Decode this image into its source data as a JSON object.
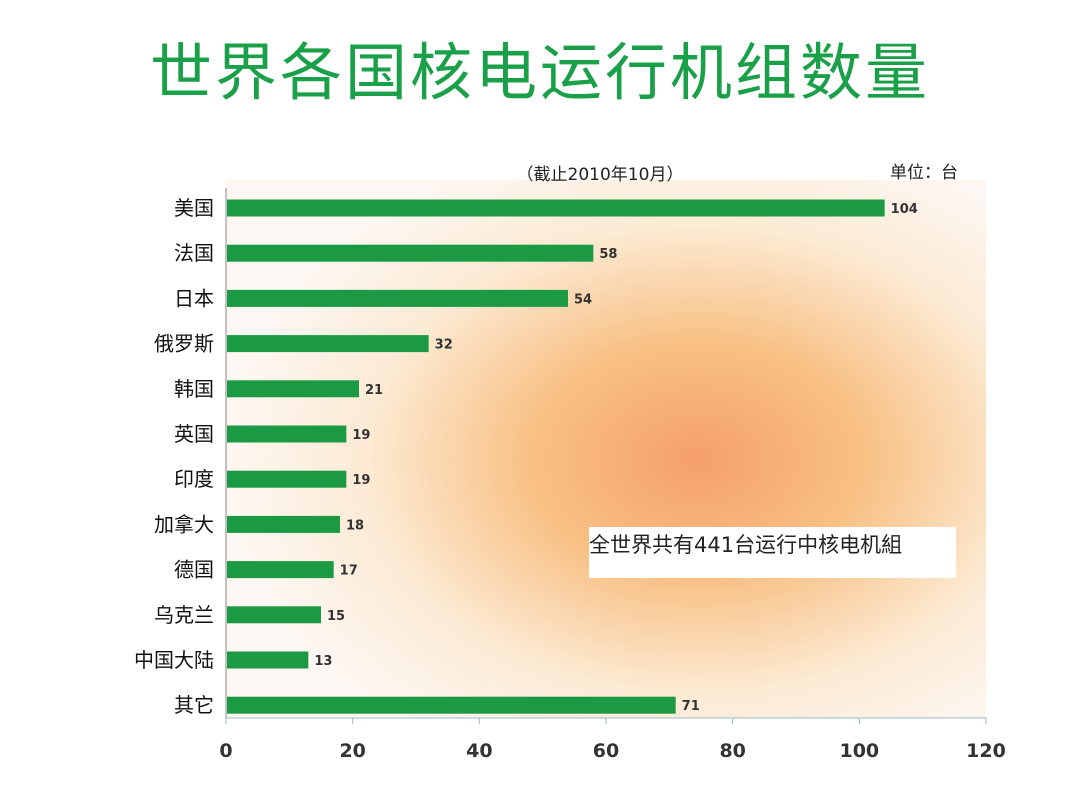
{
  "slide": {
    "title": "世界各国核电运行机组数量"
  },
  "chart_data": {
    "type": "bar",
    "orientation": "horizontal",
    "title": "",
    "subtitle": "（截止2010年10月）",
    "unit_label": "单位：台",
    "categories": [
      "美国",
      "法国",
      "日本",
      "俄罗斯",
      "韩国",
      "英国",
      "印度",
      "加拿大",
      "德国",
      "乌克兰",
      "中国大陆",
      "其它"
    ],
    "values": [
      104,
      58,
      54,
      32,
      21,
      19,
      19,
      18,
      17,
      15,
      13,
      71
    ],
    "xlim": [
      0,
      120
    ],
    "x_ticks": [
      0,
      20,
      40,
      60,
      80,
      100,
      120
    ],
    "grid": false,
    "legend": "none",
    "annotation": "全世界共有441台运行中核电机組",
    "colors": {
      "bar": "#1b9a43",
      "title": "#1aa048"
    }
  }
}
